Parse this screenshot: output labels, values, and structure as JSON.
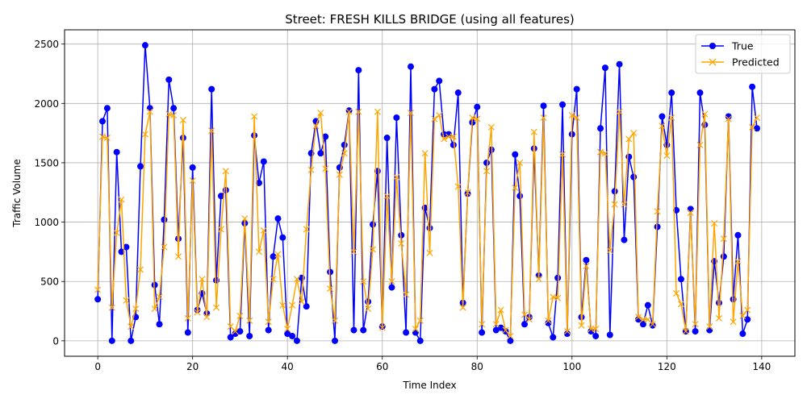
{
  "colors": {
    "true": "#0000ff",
    "predicted": "#ffa500",
    "grid": "#b0b0b0"
  },
  "chart_data": {
    "type": "line",
    "title": "Street: FRESH KILLS BRIDGE (using all features)",
    "xlabel": "Time Index",
    "ylabel": "Traffic Volume",
    "xlim": [
      -7,
      147
    ],
    "ylim": [
      -130,
      2620
    ],
    "xticks": [
      0,
      20,
      40,
      60,
      80,
      100,
      120,
      140
    ],
    "yticks": [
      0,
      500,
      1000,
      1500,
      2000,
      2500
    ],
    "grid": true,
    "legend": "top-right",
    "x": [
      0,
      1,
      2,
      3,
      4,
      5,
      6,
      7,
      8,
      9,
      10,
      11,
      12,
      13,
      14,
      15,
      16,
      17,
      18,
      19,
      20,
      21,
      22,
      23,
      24,
      25,
      26,
      27,
      28,
      29,
      30,
      31,
      32,
      33,
      34,
      35,
      36,
      37,
      38,
      39,
      40,
      41,
      42,
      43,
      44,
      45,
      46,
      47,
      48,
      49,
      50,
      51,
      52,
      53,
      54,
      55,
      56,
      57,
      58,
      59,
      60,
      61,
      62,
      63,
      64,
      65,
      66,
      67,
      68,
      69,
      70,
      71,
      72,
      73,
      74,
      75,
      76,
      77,
      78,
      79,
      80,
      81,
      82,
      83,
      84,
      85,
      86,
      87,
      88,
      89,
      90,
      91,
      92,
      93,
      94,
      95,
      96,
      97,
      98,
      99,
      100,
      101,
      102,
      103,
      104,
      105,
      106,
      107,
      108,
      109,
      110,
      111,
      112,
      113,
      114,
      115,
      116,
      117,
      118,
      119,
      120,
      121,
      122,
      123,
      124,
      125,
      126,
      127,
      128,
      129,
      130,
      131,
      132,
      133,
      134,
      135,
      136,
      137,
      138,
      139
    ],
    "series": [
      {
        "name": "True",
        "marker": "circle",
        "values": [
          350,
          1850,
          1960,
          0,
          1590,
          750,
          790,
          0,
          200,
          1470,
          2490,
          1960,
          470,
          140,
          1020,
          2200,
          1960,
          860,
          1710,
          70,
          1460,
          260,
          400,
          230,
          2120,
          510,
          1220,
          1270,
          30,
          60,
          80,
          990,
          40,
          1730,
          1330,
          1510,
          90,
          710,
          1030,
          870,
          60,
          40,
          0,
          530,
          290,
          1580,
          1850,
          1580,
          1720,
          580,
          0,
          1460,
          1650,
          1940,
          90,
          2280,
          90,
          330,
          980,
          1430,
          120,
          1710,
          450,
          1880,
          890,
          70,
          2310,
          70,
          0,
          1120,
          950,
          2120,
          2190,
          1740,
          1740,
          1650,
          2090,
          320,
          1240,
          1840,
          1970,
          70,
          1500,
          1610,
          90,
          110,
          80,
          0,
          1570,
          1220,
          140,
          200,
          1620,
          550,
          1980,
          150,
          30,
          530,
          1990,
          60,
          1740,
          2120,
          200,
          680,
          80,
          40,
          1790,
          2300,
          50,
          1260,
          2330,
          850,
          1550,
          1380,
          180,
          140,
          300,
          130,
          960,
          1890,
          1650,
          2090,
          1100,
          520,
          80,
          1110,
          80,
          2090,
          1820,
          90,
          670,
          320,
          710,
          1890,
          350,
          890,
          60,
          180,
          2140,
          1790
        ]
      },
      {
        "name": "Predicted",
        "marker": "x",
        "values": [
          430,
          1720,
          1710,
          280,
          910,
          1190,
          340,
          120,
          270,
          600,
          1740,
          1930,
          270,
          370,
          790,
          1910,
          1900,
          710,
          1860,
          190,
          1350,
          240,
          520,
          200,
          1770,
          280,
          940,
          1430,
          120,
          80,
          210,
          1030,
          170,
          1890,
          750,
          930,
          160,
          520,
          730,
          300,
          100,
          300,
          520,
          330,
          940,
          1440,
          1810,
          1920,
          1450,
          440,
          170,
          1400,
          1580,
          1930,
          750,
          1930,
          500,
          270,
          770,
          1930,
          110,
          1220,
          500,
          1380,
          820,
          390,
          1920,
          100,
          170,
          1580,
          740,
          1870,
          1900,
          1700,
          1720,
          1720,
          1300,
          280,
          1250,
          1880,
          1870,
          140,
          1430,
          1800,
          140,
          260,
          90,
          40,
          1290,
          1500,
          220,
          180,
          1760,
          520,
          1880,
          170,
          370,
          360,
          1570,
          80,
          1900,
          1880,
          130,
          630,
          100,
          100,
          1590,
          1580,
          760,
          1150,
          1930,
          1150,
          1700,
          1750,
          200,
          180,
          180,
          140,
          1090,
          1810,
          1560,
          1880,
          400,
          310,
          80,
          1080,
          140,
          1650,
          1910,
          120,
          990,
          190,
          860,
          1870,
          160,
          670,
          210,
          260,
          1800,
          1880
        ]
      }
    ]
  }
}
